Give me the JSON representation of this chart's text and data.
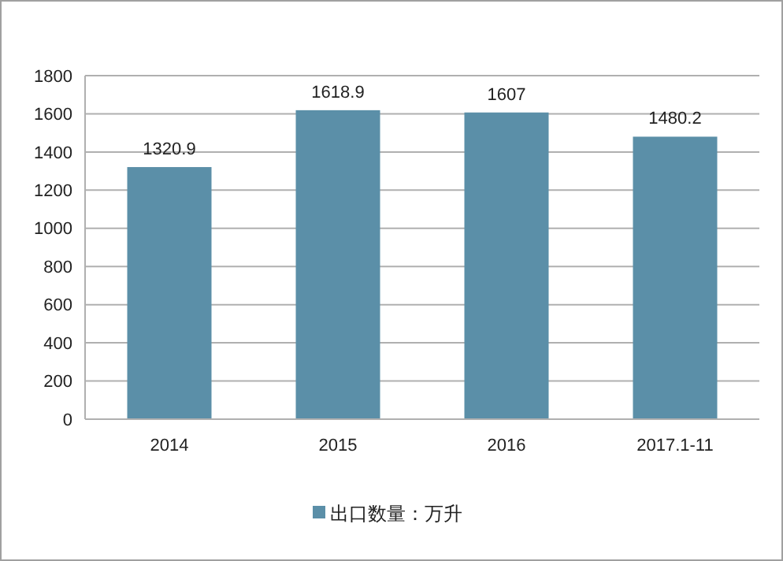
{
  "chart_data": {
    "type": "bar",
    "categories": [
      "2014",
      "2015",
      "2016",
      "2017.1-11"
    ],
    "series": [
      {
        "name": "出口数量：万升",
        "color": "#5b8fa8",
        "values": [
          1320.9,
          1618.9,
          1607,
          1480.2
        ]
      }
    ],
    "ylim": [
      0,
      1800
    ],
    "yticks": [
      0,
      200,
      400,
      600,
      800,
      1000,
      1200,
      1400,
      1600,
      1800
    ],
    "grid": "y",
    "legend": "bottom",
    "data_labels": true
  }
}
